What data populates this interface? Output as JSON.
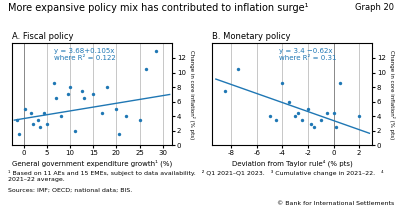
{
  "title": "More expansive policy mix has contributed to inflation surge¹",
  "label": "Graph 20",
  "notes": [
    "¹ Based on 11 AEs and 15 EMEs, subject to data availability.   ² Q1 2021–Q1 2023.   ³ Cumulative change in 2021–22.   ⁴ 2021–22 average.",
    "Sources: IMF; OECD; national data; BIS.",
    "© Bank for International Settlements"
  ],
  "chart_data": [
    {
      "type": "scatter",
      "title": "A. Fiscal policy",
      "x_label": "General government expenditure growth¹ (%)",
      "y_label": "Change in core inflation² (% pts)",
      "xlim": [
        -2.5,
        32
      ],
      "ylim": [
        0,
        14
      ],
      "xticks": [
        0,
        5,
        10,
        15,
        20,
        25,
        30
      ],
      "yticks": [
        0,
        2,
        4,
        6,
        8,
        10,
        12
      ],
      "grid": "x",
      "vlines": [
        0
      ],
      "annotations": [
        "y = 3.68+0.105x",
        "where R² = 0.122"
      ],
      "series": [
        {
          "type": "scatter",
          "x": [
            -1.5,
            -1.0,
            0.3,
            1.5,
            2.0,
            3.0,
            3.5,
            4.5,
            5.0,
            6.5,
            7.0,
            8.0,
            9.5,
            10.0,
            11.0,
            12.5,
            13.0,
            15.0,
            17.0,
            18.0,
            20.0,
            20.5,
            22.0,
            25.0,
            26.5,
            28.5
          ],
          "values": [
            3.5,
            1.5,
            5.0,
            4.5,
            3.0,
            3.5,
            2.5,
            4.5,
            3.0,
            8.5,
            6.5,
            4.0,
            7.0,
            8.0,
            2.0,
            7.5,
            6.5,
            7.0,
            4.5,
            8.0,
            5.0,
            1.5,
            4.0,
            3.5,
            10.5,
            13.0
          ]
        },
        {
          "type": "line",
          "x": [
            -2.0,
            31.5
          ],
          "values": [
            3.47,
            6.9875
          ]
        }
      ]
    },
    {
      "type": "scatter",
      "title": "B. Monetary policy",
      "x_label": "Deviation from Taylor rule⁴ (% pts)",
      "y_label": "Change in core inflation² (% pts)",
      "xlim": [
        -9.5,
        3.0
      ],
      "ylim": [
        0,
        14
      ],
      "xticks": [
        -8,
        -6,
        -4,
        -2,
        0,
        2
      ],
      "yticks": [
        0,
        2,
        4,
        6,
        8,
        10,
        12
      ],
      "grid": "x",
      "vlines": [
        0
      ],
      "annotations": [
        "y = 3.4 −0.62x",
        "where R² = 0.31"
      ],
      "series": [
        {
          "type": "scatter",
          "x": [
            -8.5,
            -7.5,
            -5.0,
            -4.5,
            -4.0,
            -3.5,
            -3.0,
            -2.8,
            -2.5,
            -2.0,
            -1.8,
            -1.5,
            -1.0,
            -0.5,
            0.0,
            0.2,
            0.5,
            2.0
          ],
          "values": [
            7.5,
            10.5,
            4.0,
            3.5,
            8.5,
            6.0,
            4.0,
            4.5,
            3.5,
            5.0,
            3.0,
            2.5,
            3.5,
            4.5,
            4.5,
            2.5,
            8.5,
            4.0
          ]
        },
        {
          "type": "line",
          "x": [
            -9.2,
            2.8
          ],
          "values": [
            9.104,
            1.664
          ]
        }
      ]
    }
  ]
}
